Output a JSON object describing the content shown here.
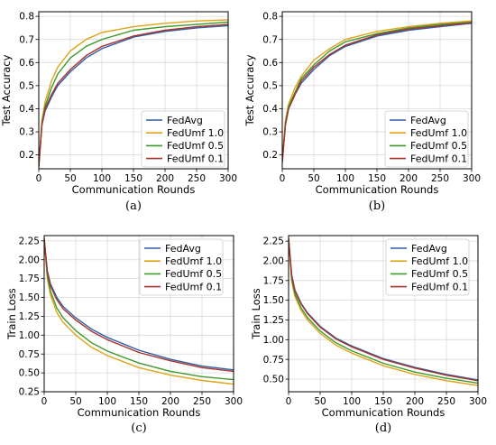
{
  "colors": {
    "FedAvg": "#2f5fa5",
    "FedUmf 1.0": "#e0a31a",
    "FedUmf 0.5": "#3f9a2d",
    "FedUmf 0.1": "#a8322c"
  },
  "chart_data": [
    {
      "type": "line",
      "caption": "(a)",
      "xlabel": "Communication Rounds",
      "ylabel": "Test Accuracy",
      "xlim": [
        0,
        300
      ],
      "ylim": [
        0.14,
        0.82
      ],
      "xticks": [
        0,
        50,
        100,
        150,
        200,
        250,
        300
      ],
      "yticks": [
        0.2,
        0.3,
        0.4,
        0.5,
        0.6,
        0.7,
        0.8
      ],
      "ytick_labels": [
        "0.2",
        "0.3",
        "0.4",
        "0.5",
        "0.6",
        "0.7",
        "0.8"
      ],
      "grid": true,
      "legend": "bottom-right",
      "series": [
        {
          "name": "FedAvg",
          "x": [
            0,
            5,
            10,
            20,
            30,
            50,
            75,
            100,
            150,
            200,
            250,
            300
          ],
          "y": [
            0.15,
            0.33,
            0.39,
            0.45,
            0.5,
            0.56,
            0.62,
            0.66,
            0.71,
            0.735,
            0.75,
            0.76
          ]
        },
        {
          "name": "FedUmf 1.0",
          "x": [
            0,
            5,
            10,
            20,
            30,
            50,
            75,
            100,
            150,
            200,
            250,
            300
          ],
          "y": [
            0.15,
            0.35,
            0.43,
            0.52,
            0.58,
            0.65,
            0.7,
            0.73,
            0.755,
            0.77,
            0.78,
            0.785
          ]
        },
        {
          "name": "FedUmf 0.5",
          "x": [
            0,
            5,
            10,
            20,
            30,
            50,
            75,
            100,
            150,
            200,
            250,
            300
          ],
          "y": [
            0.15,
            0.34,
            0.41,
            0.49,
            0.55,
            0.62,
            0.67,
            0.7,
            0.74,
            0.755,
            0.765,
            0.775
          ]
        },
        {
          "name": "FedUmf 0.1",
          "x": [
            0,
            5,
            10,
            20,
            30,
            50,
            75,
            100,
            150,
            200,
            250,
            300
          ],
          "y": [
            0.15,
            0.33,
            0.4,
            0.46,
            0.51,
            0.57,
            0.63,
            0.67,
            0.715,
            0.74,
            0.755,
            0.765
          ]
        }
      ]
    },
    {
      "type": "line",
      "caption": "(b)",
      "xlabel": "Communication Rounds",
      "ylabel": "Test Accuracy",
      "xlim": [
        0,
        300
      ],
      "ylim": [
        0.14,
        0.82
      ],
      "xticks": [
        0,
        50,
        100,
        150,
        200,
        250,
        300
      ],
      "yticks": [
        0.2,
        0.3,
        0.4,
        0.5,
        0.6,
        0.7,
        0.8
      ],
      "ytick_labels": [
        "0.2",
        "0.3",
        "0.4",
        "0.5",
        "0.6",
        "0.7",
        "0.8"
      ],
      "grid": true,
      "legend": "bottom-right",
      "series": [
        {
          "name": "FedAvg",
          "x": [
            0,
            5,
            10,
            20,
            30,
            50,
            75,
            100,
            150,
            200,
            250,
            300
          ],
          "y": [
            0.17,
            0.33,
            0.4,
            0.46,
            0.51,
            0.57,
            0.63,
            0.67,
            0.715,
            0.74,
            0.755,
            0.77
          ]
        },
        {
          "name": "FedUmf 1.0",
          "x": [
            0,
            5,
            10,
            20,
            30,
            50,
            75,
            100,
            150,
            200,
            250,
            300
          ],
          "y": [
            0.17,
            0.35,
            0.42,
            0.49,
            0.54,
            0.61,
            0.66,
            0.7,
            0.735,
            0.755,
            0.77,
            0.78
          ]
        },
        {
          "name": "FedUmf 0.5",
          "x": [
            0,
            5,
            10,
            20,
            30,
            50,
            75,
            100,
            150,
            200,
            250,
            300
          ],
          "y": [
            0.17,
            0.34,
            0.41,
            0.47,
            0.53,
            0.59,
            0.65,
            0.69,
            0.725,
            0.75,
            0.765,
            0.775
          ]
        },
        {
          "name": "FedUmf 0.1",
          "x": [
            0,
            5,
            10,
            20,
            30,
            50,
            75,
            100,
            150,
            200,
            250,
            300
          ],
          "y": [
            0.17,
            0.33,
            0.4,
            0.46,
            0.52,
            0.58,
            0.635,
            0.675,
            0.72,
            0.745,
            0.76,
            0.772
          ]
        }
      ]
    },
    {
      "type": "line",
      "caption": "(c)",
      "xlabel": "Communication Rounds",
      "ylabel": "Train Loss",
      "xlim": [
        0,
        300
      ],
      "ylim": [
        0.25,
        2.32
      ],
      "xticks": [
        0,
        50,
        100,
        150,
        200,
        250,
        300
      ],
      "yticks": [
        0.25,
        0.5,
        0.75,
        1.0,
        1.25,
        1.5,
        1.75,
        2.0,
        2.25
      ],
      "ytick_labels": [
        "0.25",
        "0.50",
        "0.75",
        "1.00",
        "1.25",
        "1.50",
        "1.75",
        "2.00",
        "2.25"
      ],
      "grid": true,
      "legend": "top-right",
      "series": [
        {
          "name": "FedAvg",
          "x": [
            0,
            5,
            10,
            20,
            30,
            50,
            75,
            100,
            150,
            200,
            250,
            300
          ],
          "y": [
            2.28,
            1.85,
            1.68,
            1.5,
            1.38,
            1.23,
            1.08,
            0.97,
            0.8,
            0.68,
            0.59,
            0.54
          ]
        },
        {
          "name": "FedUmf 1.0",
          "x": [
            0,
            5,
            10,
            20,
            30,
            50,
            75,
            100,
            150,
            200,
            250,
            300
          ],
          "y": [
            2.28,
            1.75,
            1.53,
            1.3,
            1.17,
            1.0,
            0.84,
            0.73,
            0.57,
            0.47,
            0.4,
            0.35
          ]
        },
        {
          "name": "FedUmf 0.5",
          "x": [
            0,
            5,
            10,
            20,
            30,
            50,
            75,
            100,
            150,
            200,
            250,
            300
          ],
          "y": [
            2.28,
            1.78,
            1.58,
            1.36,
            1.23,
            1.06,
            0.9,
            0.79,
            0.63,
            0.52,
            0.45,
            0.41
          ]
        },
        {
          "name": "FedUmf 0.1",
          "x": [
            0,
            5,
            10,
            20,
            30,
            50,
            75,
            100,
            150,
            200,
            250,
            300
          ],
          "y": [
            2.28,
            1.83,
            1.65,
            1.47,
            1.35,
            1.2,
            1.05,
            0.94,
            0.77,
            0.66,
            0.57,
            0.52
          ]
        }
      ]
    },
    {
      "type": "line",
      "caption": "(d)",
      "xlabel": "Communication Rounds",
      "ylabel": "Train Loss",
      "xlim": [
        0,
        300
      ],
      "ylim": [
        0.34,
        2.32
      ],
      "xticks": [
        0,
        50,
        100,
        150,
        200,
        250,
        300
      ],
      "yticks": [
        0.5,
        0.75,
        1.0,
        1.25,
        1.5,
        1.75,
        2.0,
        2.25
      ],
      "ytick_labels": [
        "0.50",
        "0.75",
        "1.00",
        "1.25",
        "1.50",
        "1.75",
        "2.00",
        "2.25"
      ],
      "grid": true,
      "legend": "top-right",
      "series": [
        {
          "name": "FedAvg",
          "x": [
            0,
            5,
            10,
            20,
            30,
            50,
            75,
            100,
            150,
            200,
            250,
            300
          ],
          "y": [
            2.28,
            1.82,
            1.63,
            1.46,
            1.34,
            1.17,
            1.02,
            0.92,
            0.76,
            0.65,
            0.56,
            0.49
          ]
        },
        {
          "name": "FedUmf 1.0",
          "x": [
            0,
            5,
            10,
            20,
            30,
            50,
            75,
            100,
            150,
            200,
            250,
            300
          ],
          "y": [
            2.28,
            1.74,
            1.55,
            1.37,
            1.25,
            1.08,
            0.93,
            0.83,
            0.67,
            0.56,
            0.48,
            0.42
          ]
        },
        {
          "name": "FedUmf 0.5",
          "x": [
            0,
            5,
            10,
            20,
            30,
            50,
            75,
            100,
            150,
            200,
            250,
            300
          ],
          "y": [
            2.28,
            1.77,
            1.58,
            1.4,
            1.28,
            1.11,
            0.96,
            0.86,
            0.7,
            0.59,
            0.51,
            0.45
          ]
        },
        {
          "name": "FedUmf 0.1",
          "x": [
            0,
            5,
            10,
            20,
            30,
            50,
            75,
            100,
            150,
            200,
            250,
            300
          ],
          "y": [
            2.28,
            1.81,
            1.62,
            1.45,
            1.33,
            1.16,
            1.01,
            0.91,
            0.75,
            0.64,
            0.55,
            0.48
          ]
        }
      ]
    }
  ]
}
